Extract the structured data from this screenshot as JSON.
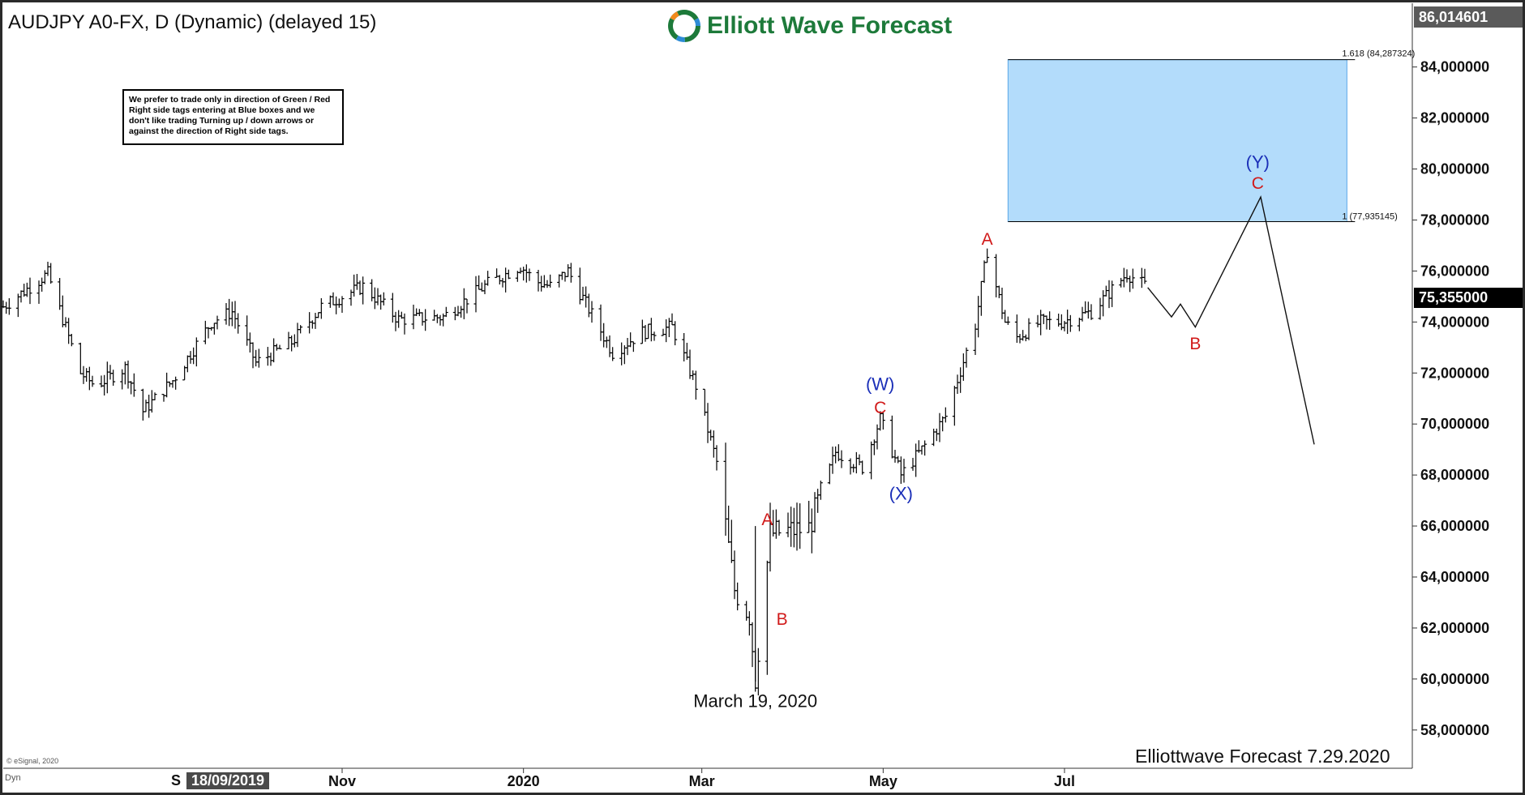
{
  "header": {
    "title": "AUDJPY A0-FX, D (Dynamic) (delayed 15)",
    "logo_text": "Elliott Wave Forecast"
  },
  "notice_text": "We prefer to trade only in direction of Green / Red Right side tags entering at Blue boxes and we don't like trading Turning up / down arrows or against the direction of Right side tags.",
  "copyright": "© eSignal, 2020",
  "footer_note": "Elliottwave Forecast 7.29.2020",
  "dyn_label": "Dyn",
  "cursor_date": "18/09/2019",
  "cursor_date_prefix": "S",
  "current_price": "75,355000",
  "top_price": "86,014601",
  "colors": {
    "blue_box_fill": "#b3dcfb",
    "blue_box_stroke": "#5aa7e8",
    "wave_red": "#d11a1a",
    "wave_blue": "#1b2fb8",
    "bars": "#000000"
  },
  "chart_data": {
    "type": "ohlc",
    "symbol": "AUDJPY",
    "y_axis_side": "right",
    "ylim": [
      56.5,
      86.5
    ],
    "y_ticks": [
      {
        "value": 84,
        "label": "84,000000"
      },
      {
        "value": 82,
        "label": "82,000000"
      },
      {
        "value": 80,
        "label": "80,000000"
      },
      {
        "value": 78,
        "label": "78,000000"
      },
      {
        "value": 76,
        "label": "76,000000"
      },
      {
        "value": 74,
        "label": "74,000000"
      },
      {
        "value": 72,
        "label": "72,000000"
      },
      {
        "value": 70,
        "label": "70,000000"
      },
      {
        "value": 68,
        "label": "68,000000"
      },
      {
        "value": 66,
        "label": "66,000000"
      },
      {
        "value": 64,
        "label": "64,000000"
      },
      {
        "value": 62,
        "label": "62,000000"
      },
      {
        "value": 60,
        "label": "60,000000"
      },
      {
        "value": 58,
        "label": "58,000000"
      }
    ],
    "x_axis": {
      "start": "2019-07-10",
      "end": "2020-10-26",
      "ticks": [
        {
          "date": "2019-11-01",
          "label": "Nov"
        },
        {
          "date": "2020-01-01",
          "label": "2020"
        },
        {
          "date": "2020-03-01",
          "label": "Mar"
        },
        {
          "date": "2020-05-01",
          "label": "May"
        },
        {
          "date": "2020-07-01",
          "label": "Jul"
        }
      ]
    },
    "price_path": [
      [
        "2019-07-10",
        74.6
      ],
      [
        "2019-07-25",
        75.9
      ],
      [
        "2019-08-05",
        72.0
      ],
      [
        "2019-08-10",
        71.5
      ],
      [
        "2019-08-20",
        72.2
      ],
      [
        "2019-08-26",
        70.5
      ],
      [
        "2019-09-05",
        71.7
      ],
      [
        "2019-09-18",
        74.0
      ],
      [
        "2019-09-25",
        74.4
      ],
      [
        "2019-10-03",
        72.4
      ],
      [
        "2019-10-15",
        73.2
      ],
      [
        "2019-10-25",
        74.6
      ],
      [
        "2019-11-08",
        75.4
      ],
      [
        "2019-11-20",
        74.1
      ],
      [
        "2019-12-05",
        74.2
      ],
      [
        "2019-12-20",
        75.5
      ],
      [
        "2019-12-31",
        76.2
      ],
      [
        "2020-01-05",
        75.6
      ],
      [
        "2020-01-10",
        75.4
      ],
      [
        "2020-01-16",
        76.0
      ],
      [
        "2020-01-31",
        72.8
      ],
      [
        "2020-02-10",
        73.6
      ],
      [
        "2020-02-20",
        73.8
      ],
      [
        "2020-02-28",
        71.5
      ],
      [
        "2020-03-06",
        68.5
      ],
      [
        "2020-03-12",
        63.5
      ],
      [
        "2020-03-17",
        62.5
      ],
      [
        "2020-03-19",
        60.0
      ],
      [
        "2020-03-24",
        65.7
      ],
      [
        "2020-03-30",
        65.8
      ],
      [
        "2020-04-06",
        65.9
      ],
      [
        "2020-04-15",
        68.9
      ],
      [
        "2020-04-24",
        68.3
      ],
      [
        "2020-04-30",
        70.2
      ],
      [
        "2020-05-07",
        68.0
      ],
      [
        "2020-05-14",
        69.0
      ],
      [
        "2020-05-22",
        70.3
      ],
      [
        "2020-06-01",
        73.9
      ],
      [
        "2020-06-05",
        76.8
      ],
      [
        "2020-06-11",
        74.0
      ],
      [
        "2020-06-15",
        73.4
      ],
      [
        "2020-06-23",
        74.0
      ],
      [
        "2020-06-30",
        74.0
      ],
      [
        "2020-07-10",
        74.4
      ],
      [
        "2020-07-22",
        75.9
      ],
      [
        "2020-07-29",
        75.35
      ]
    ],
    "projection": [
      [
        "2020-07-29",
        75.35
      ],
      [
        "2020-08-06",
        74.2
      ],
      [
        "2020-08-09",
        74.7
      ],
      [
        "2020-08-14",
        73.8
      ],
      [
        "2020-09-05",
        78.9
      ],
      [
        "2020-09-23",
        69.2
      ]
    ],
    "blue_box": {
      "x_from": "2020-06-12",
      "x_to": "2020-10-04",
      "y_from": 77.935145,
      "y_to": 84.287324,
      "upper_label": "1.618 (84,287324)",
      "lower_label": "1 (77,935145)"
    },
    "wave_labels": [
      {
        "text": "A",
        "date": "2020-03-23",
        "price": 65.9,
        "color": "red",
        "pos": "above"
      },
      {
        "text": "B",
        "date": "2020-03-28",
        "price": 62.7,
        "color": "red",
        "pos": "below"
      },
      {
        "text": "C",
        "date": "2020-04-30",
        "price": 70.3,
        "color": "red",
        "pos": "above"
      },
      {
        "text": "(W)",
        "date": "2020-04-30",
        "price": 71.2,
        "color": "blue",
        "pos": "above"
      },
      {
        "text": "(X)",
        "date": "2020-05-07",
        "price": 67.6,
        "color": "blue",
        "pos": "below"
      },
      {
        "text": "A",
        "date": "2020-06-05",
        "price": 76.9,
        "color": "red",
        "pos": "above"
      },
      {
        "text": "B",
        "date": "2020-08-14",
        "price": 73.5,
        "color": "red",
        "pos": "below"
      },
      {
        "text": "C",
        "date": "2020-09-04",
        "price": 79.1,
        "color": "red",
        "pos": "above"
      },
      {
        "text": "(Y)",
        "date": "2020-09-04",
        "price": 79.9,
        "color": "blue",
        "pos": "above"
      }
    ],
    "annotations": [
      {
        "text": "March 19, 2020",
        "date": "2020-03-19",
        "price": 59.6
      }
    ]
  }
}
